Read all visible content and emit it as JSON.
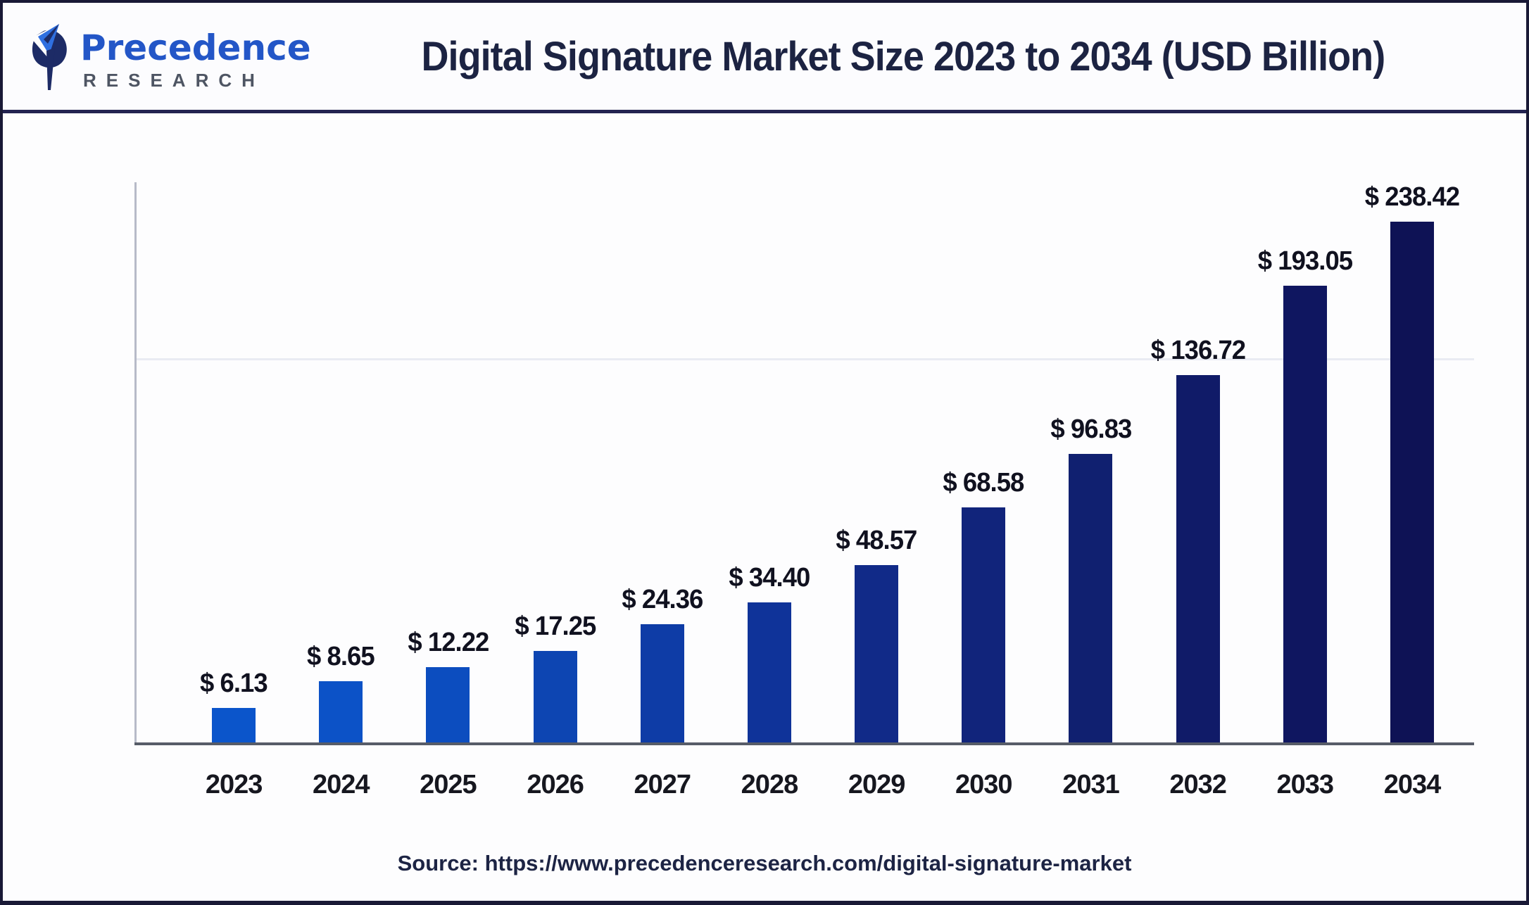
{
  "header": {
    "brand_name": "Precedence",
    "brand_subtitle": "RESEARCH",
    "title": "Digital Signature Market Size 2023 to 2034 (USD Billion)"
  },
  "chart_data": {
    "type": "bar",
    "title": "Digital Signature Market Size 2023 to 2034 (USD Billion)",
    "unit": "USD Billion",
    "categories": [
      "2023",
      "2024",
      "2025",
      "2026",
      "2027",
      "2028",
      "2029",
      "2030",
      "2031",
      "2032",
      "2033",
      "2034"
    ],
    "values": [
      6.13,
      8.65,
      12.22,
      17.25,
      24.36,
      34.4,
      48.57,
      68.58,
      96.83,
      136.72,
      193.05,
      238.42
    ],
    "value_labels": [
      "$ 6.13",
      "$ 8.65",
      "$ 12.22",
      "$ 17.25",
      "$ 24.36",
      "$ 34.40",
      "$ 48.57",
      "$ 68.58",
      "$ 96.83",
      "$ 136.72",
      "$ 193.05",
      "$ 238.42"
    ],
    "bar_colors": [
      "#0b55cb",
      "#0c52c7",
      "#0c4dbf",
      "#0d45b2",
      "#0e3ca6",
      "#0f3399",
      "#112a88",
      "#11247b",
      "#102070",
      "#101b68",
      "#0f1660",
      "#0e1255"
    ],
    "bar_height_pct": [
      6.1,
      10.9,
      13.5,
      16.3,
      21.1,
      25.0,
      31.6,
      42.0,
      51.5,
      65.6,
      81.5,
      93.1
    ],
    "xlabel": "",
    "ylabel": "",
    "y_axis_tick_labels_visible": false,
    "grid": "one faint horizontal gridline, upper third",
    "legend": false,
    "accent_color_start": "#0b55cb",
    "accent_color_end": "#0e1255"
  },
  "source_text": "Source: https://www.precedenceresearch.com/digital-signature-market"
}
